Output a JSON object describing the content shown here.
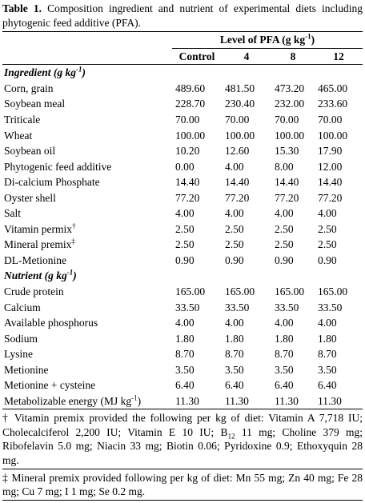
{
  "title": {
    "label": "Table 1.",
    "text": " Composition ingredient and nutrient of experimental diets including phytogenic feed additive (PFA)."
  },
  "table": {
    "group_header": [
      {
        "t": "Level of PFA (g kg"
      },
      {
        "sup": "-1"
      },
      {
        "t": ")"
      }
    ],
    "columns": [
      "Control",
      "4",
      "8",
      "12"
    ],
    "sections": [
      {
        "heading": [
          {
            "t": "Ingredient (g kg"
          },
          {
            "sup": "-1"
          },
          {
            "t": ")"
          }
        ],
        "rows": [
          [
            "Corn, grain",
            "489.60",
            "481.50",
            "473.20",
            "465.00"
          ],
          [
            "Soybean meal",
            "228.70",
            "230.40",
            "232.00",
            "233.60"
          ],
          [
            "Triticale",
            "70.00",
            "70.00",
            "70.00",
            "70.00"
          ],
          [
            "Wheat",
            "100.00",
            "100.00",
            "100.00",
            "100.00"
          ],
          [
            "Soybean oil",
            "10.20",
            "12.60",
            "15.30",
            "17.90"
          ],
          [
            "Phytogenic feed additive",
            "0.00",
            "4.00",
            "8.00",
            "12.00"
          ],
          [
            "Di-calcium Phosphate",
            "14.40",
            "14.40",
            "14.40",
            "14.40"
          ],
          [
            "Oyster shell",
            "77.20",
            "77.20",
            "77.20",
            "77.20"
          ],
          [
            "Salt",
            "4.00",
            "4.00",
            "4.00",
            "4.00"
          ],
          [
            [
              {
                "t": "Vitamin permix"
              },
              {
                "sup": "†"
              }
            ],
            "2.50",
            "2.50",
            "2.50",
            "2.50"
          ],
          [
            [
              {
                "t": "Mineral premix"
              },
              {
                "sup": "‡"
              }
            ],
            "2.50",
            "2.50",
            "2.50",
            "2.50"
          ],
          [
            "DL-Metionine",
            "0.90",
            "0.90",
            "0.90",
            "0.90"
          ]
        ]
      },
      {
        "heading": [
          {
            "t": "Nutrient (g kg"
          },
          {
            "sup": "-1"
          },
          {
            "t": ")"
          }
        ],
        "rows": [
          [
            "Crude protein",
            "165.00",
            "165.00",
            "165.00",
            "165.00"
          ],
          [
            "Calcium",
            "33.50",
            "33.50",
            "33.50",
            "33.50"
          ],
          [
            "Available phosphorus",
            "4.00",
            "4.00",
            "4.00",
            "4.00"
          ],
          [
            "Sodium",
            "1.80",
            "1.80",
            "1.80",
            "1.80"
          ],
          [
            "Lysine",
            "8.70",
            "8.70",
            "8.70",
            "8.70"
          ],
          [
            "Metionine",
            "3.50",
            "3.50",
            "3.50",
            "3.50"
          ],
          [
            "Metionine + cysteine",
            "6.40",
            "6.40",
            "6.40",
            "6.40"
          ],
          [
            [
              {
                "t": "Metabolizable energy (MJ kg"
              },
              {
                "sup": "-1"
              },
              {
                "t": ")"
              }
            ],
            "11.30",
            "11.30",
            "11.30",
            "11.30"
          ]
        ]
      }
    ]
  },
  "footnotes": [
    [
      {
        "t": "† Vitamin premix provided the following per kg of diet: Vitamin A 7,718 IU; Cholecalciferol 2,200 IU; Vitamin E 10 IU; B"
      },
      {
        "sub": "12"
      },
      {
        "t": " 11 mg; Choline 379 mg; Ribofelavin 5.0 mg; Niacin 33 mg; Biotin 0.06; Pyridoxine 0.9; Ethoxyquin 28 mg."
      }
    ],
    [
      {
        "t": "‡ Mineral premix provided following per kg of diet: Mn 55 mg; Zn 40 mg; Fe 28 mg; Cu 7 mg; I 1 mg; Se 0.2 mg."
      }
    ]
  ]
}
